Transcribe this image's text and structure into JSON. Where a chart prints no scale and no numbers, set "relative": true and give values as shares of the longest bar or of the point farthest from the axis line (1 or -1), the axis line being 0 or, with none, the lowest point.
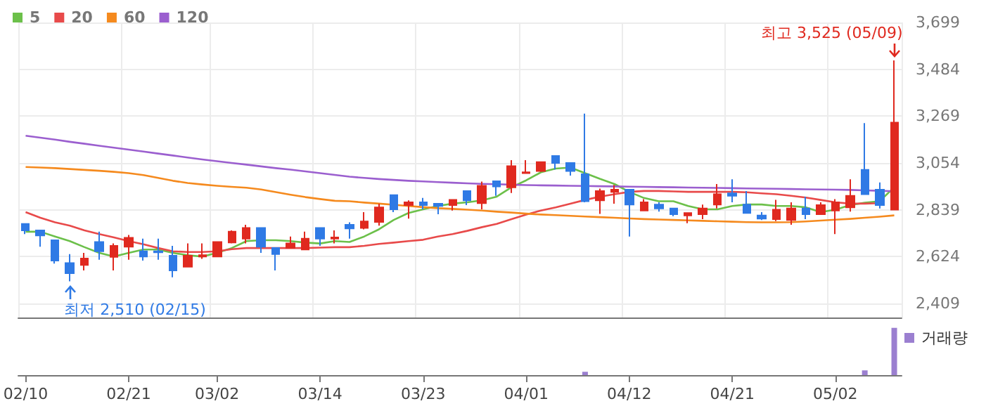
{
  "chart_data": [
    {
      "type": "candlestick",
      "legend": "top left",
      "grid": true,
      "tick_labels": "y",
      "categories": [
        null,
        null,
        null,
        null,
        null,
        null,
        null,
        null,
        null,
        null,
        null,
        null,
        null,
        null,
        null,
        null,
        null,
        null,
        null,
        null,
        null,
        null,
        null,
        null,
        null,
        null,
        null,
        null,
        null,
        null,
        null,
        null,
        null,
        null,
        null,
        null,
        null,
        null,
        null,
        null,
        null,
        null,
        null,
        null,
        null,
        null,
        null,
        null,
        null,
        null,
        null,
        null,
        null,
        null,
        null,
        null,
        null,
        null,
        null,
        null
      ],
      "ylim": [
        2344,
        3699
      ],
      "yticks": [
        {
          "value": 2409,
          "label": "2,409"
        },
        {
          "value": 2624,
          "label": "2,624"
        },
        {
          "value": 2839,
          "label": "2,839"
        },
        {
          "value": 3054,
          "label": "3,054"
        },
        {
          "value": 3269,
          "label": "3,269"
        },
        {
          "value": 3484,
          "label": "3,484"
        },
        {
          "value": 3699,
          "label": "3,699"
        }
      ],
      "ohlc": [
        [
          2774,
          2774,
          2727,
          2744
        ],
        [
          2744,
          2744,
          2669,
          2721
        ],
        [
          2699,
          2699,
          2592,
          2605
        ],
        [
          2594,
          2635,
          2510,
          2547
        ],
        [
          2585,
          2641,
          2560,
          2615
        ],
        [
          2691,
          2738,
          2609,
          2648
        ],
        [
          2622,
          2684,
          2560,
          2673
        ],
        [
          2669,
          2723,
          2609,
          2710
        ],
        [
          2648,
          2706,
          2605,
          2624
        ],
        [
          2648,
          2706,
          2609,
          2643
        ],
        [
          2628,
          2673,
          2529,
          2560
        ],
        [
          2577,
          2684,
          2577,
          2628
        ],
        [
          2624,
          2684,
          2613,
          2630
        ],
        [
          2624,
          2691,
          2624,
          2691
        ],
        [
          2688,
          2744,
          2684,
          2738
        ],
        [
          2706,
          2770,
          2684,
          2755
        ],
        [
          2755,
          2755,
          2641,
          2669
        ],
        [
          2663,
          2663,
          2560,
          2635
        ],
        [
          2663,
          2716,
          2663,
          2684
        ],
        [
          2656,
          2738,
          2656,
          2706
        ],
        [
          2755,
          2755,
          2673,
          2706
        ],
        [
          2706,
          2744,
          2684,
          2712
        ],
        [
          2770,
          2781,
          2706,
          2753
        ],
        [
          2755,
          2828,
          2749,
          2785
        ],
        [
          2783,
          2867,
          2766,
          2850
        ],
        [
          2906,
          2906,
          2828,
          2841
        ],
        [
          2860,
          2882,
          2798,
          2873
        ],
        [
          2873,
          2893,
          2841,
          2860
        ],
        [
          2867,
          2867,
          2818,
          2856
        ],
        [
          2860,
          2884,
          2835,
          2884
        ],
        [
          2925,
          2925,
          2860,
          2882
        ],
        [
          2869,
          2968,
          2841,
          2949
        ],
        [
          2970,
          2970,
          2903,
          2946
        ],
        [
          2942,
          3067,
          2916,
          3039
        ],
        [
          3007,
          3067,
          3007,
          3011
        ],
        [
          3017,
          3058,
          3013,
          3058
        ],
        [
          3086,
          3086,
          3024,
          3054
        ],
        [
          3054,
          3054,
          2996,
          3017
        ],
        [
          3002,
          3280,
          2873,
          2878
        ],
        [
          2882,
          2936,
          2820,
          2925
        ],
        [
          2921,
          2953,
          2867,
          2931
        ],
        [
          2931,
          2931,
          2716,
          2863
        ],
        [
          2835,
          2888,
          2835,
          2873
        ],
        [
          2863,
          2873,
          2830,
          2845
        ],
        [
          2845,
          2845,
          2809,
          2818
        ],
        [
          2813,
          2824,
          2777,
          2824
        ],
        [
          2818,
          2863,
          2796,
          2845
        ],
        [
          2863,
          2957,
          2845,
          2910
        ],
        [
          2914,
          2979,
          2873,
          2903
        ],
        [
          2863,
          2925,
          2824,
          2824
        ],
        [
          2813,
          2828,
          2792,
          2798
        ],
        [
          2796,
          2884,
          2787,
          2839
        ],
        [
          2792,
          2873,
          2770,
          2845
        ],
        [
          2845,
          2899,
          2796,
          2818
        ],
        [
          2818,
          2873,
          2818,
          2860
        ],
        [
          2835,
          2888,
          2727,
          2873
        ],
        [
          2850,
          2979,
          2830,
          2903
        ],
        [
          3022,
          3237,
          2910,
          2910
        ],
        [
          2931,
          2964,
          2845,
          2860
        ],
        [
          2839,
          3525,
          2839,
          3239
        ]
      ],
      "series": [
        {
          "name": "5",
          "type": "line",
          "color": "#6cc04a",
          "values": [
            2738,
            2738,
            2716,
            2695,
            2667,
            2641,
            2624,
            2641,
            2656,
            2656,
            2641,
            2630,
            2624,
            2641,
            2663,
            2695,
            2699,
            2699,
            2695,
            2688,
            2684,
            2695,
            2691,
            2716,
            2749,
            2792,
            2824,
            2841,
            2856,
            2867,
            2873,
            2882,
            2899,
            2942,
            2974,
            3011,
            3028,
            3033,
            3007,
            2981,
            2957,
            2921,
            2893,
            2878,
            2878,
            2856,
            2841,
            2841,
            2856,
            2863,
            2863,
            2856,
            2856,
            2850,
            2828,
            2839,
            2860,
            2871,
            2878,
            2942
          ]
        },
        {
          "name": "20",
          "type": "line",
          "color": "#e84a4a",
          "values": [
            2828,
            2802,
            2781,
            2766,
            2744,
            2727,
            2712,
            2695,
            2680,
            2663,
            2648,
            2645,
            2645,
            2648,
            2658,
            2663,
            2663,
            2663,
            2663,
            2663,
            2665,
            2667,
            2667,
            2673,
            2682,
            2688,
            2695,
            2701,
            2716,
            2727,
            2742,
            2759,
            2774,
            2796,
            2817,
            2835,
            2850,
            2867,
            2884,
            2899,
            2910,
            2921,
            2925,
            2925,
            2923,
            2921,
            2921,
            2921,
            2921,
            2919,
            2914,
            2910,
            2903,
            2895,
            2884,
            2873,
            2867,
            2867,
            2869,
            null
          ]
        },
        {
          "name": "60",
          "type": "line",
          "color": "#f58a1e",
          "values": [
            3035,
            3033,
            3030,
            3026,
            3022,
            3018,
            3013,
            3007,
            2998,
            2985,
            2972,
            2962,
            2955,
            2949,
            2944,
            2940,
            2932,
            2920,
            2908,
            2897,
            2888,
            2880,
            2878,
            2872,
            2867,
            2862,
            2856,
            2851,
            2846,
            2843,
            2839,
            2835,
            2830,
            2826,
            2821,
            2817,
            2814,
            2811,
            2808,
            2805,
            2802,
            2799,
            2796,
            2794,
            2792,
            2790,
            2788,
            2786,
            2784,
            2782,
            2781,
            2781,
            2782,
            2785,
            2789,
            2793,
            2797,
            2802,
            2807,
            2813
          ]
        },
        {
          "name": "120",
          "type": "line",
          "color": "#9b5fcf",
          "values": [
            3179,
            3170,
            3161,
            3151,
            3142,
            3133,
            3124,
            3115,
            3106,
            3097,
            3088,
            3079,
            3070,
            3062,
            3054,
            3046,
            3038,
            3030,
            3023,
            3015,
            3007,
            2999,
            2991,
            2985,
            2980,
            2976,
            2972,
            2969,
            2966,
            2963,
            2960,
            2958,
            2956,
            2954,
            2952,
            2951,
            2950,
            2949,
            2948,
            2947,
            2946,
            2945,
            2944,
            2943,
            2942,
            2941,
            2940,
            2939,
            2938,
            2937,
            2936,
            2935,
            2934,
            2933,
            2932,
            2931,
            2930,
            2928,
            2926,
            2924
          ]
        }
      ],
      "annotations": [
        "최고 3,525 (05/09)",
        "최저 2,510 (02/15)"
      ]
    },
    {
      "type": "bar",
      "relative": true,
      "legend": "top right",
      "grid": false,
      "tick_labels": "x",
      "categories": [
        "02/10",
        null,
        null,
        null,
        null,
        null,
        null,
        "02/21",
        null,
        null,
        null,
        null,
        null,
        "03/02",
        null,
        null,
        null,
        null,
        null,
        null,
        "03/14",
        null,
        null,
        null,
        null,
        null,
        null,
        "03/23",
        null,
        null,
        null,
        null,
        null,
        null,
        "04/01",
        null,
        null,
        null,
        null,
        null,
        null,
        "04/12",
        null,
        null,
        null,
        null,
        null,
        null,
        "04/21",
        null,
        null,
        null,
        null,
        null,
        null,
        "05/02",
        null,
        null,
        null,
        null
      ],
      "series": [
        {
          "name": "거래량",
          "color": "#9b7fd0",
          "values": [
            null,
            null,
            null,
            null,
            null,
            null,
            null,
            null,
            null,
            null,
            null,
            null,
            null,
            null,
            null,
            null,
            null,
            null,
            null,
            null,
            null,
            null,
            null,
            null,
            null,
            null,
            null,
            null,
            null,
            null,
            null,
            null,
            null,
            null,
            null,
            null,
            null,
            null,
            0.07,
            null,
            null,
            null,
            null,
            null,
            null,
            null,
            null,
            null,
            null,
            null,
            null,
            null,
            null,
            null,
            null,
            null,
            null,
            0.1,
            null,
            1
          ]
        }
      ]
    }
  ]
}
